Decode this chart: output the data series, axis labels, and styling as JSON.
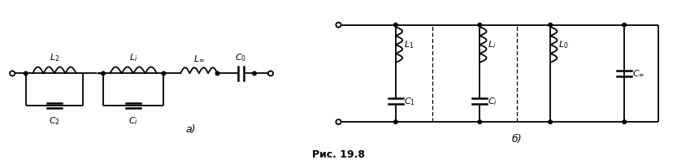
{
  "figure_width": 8.33,
  "figure_height": 2.02,
  "dpi": 100,
  "background_color": "#ffffff",
  "line_color": "#000000",
  "line_width": 1.3,
  "caption": "Рис. 19.8",
  "label_a": "а)",
  "label_b": "б)",
  "label_fontsize": 9,
  "caption_fontsize": 9,
  "main_y": 13.0,
  "bot_y": 8.0,
  "xlim": [
    0,
    100
  ],
  "ylim": [
    0,
    24
  ]
}
